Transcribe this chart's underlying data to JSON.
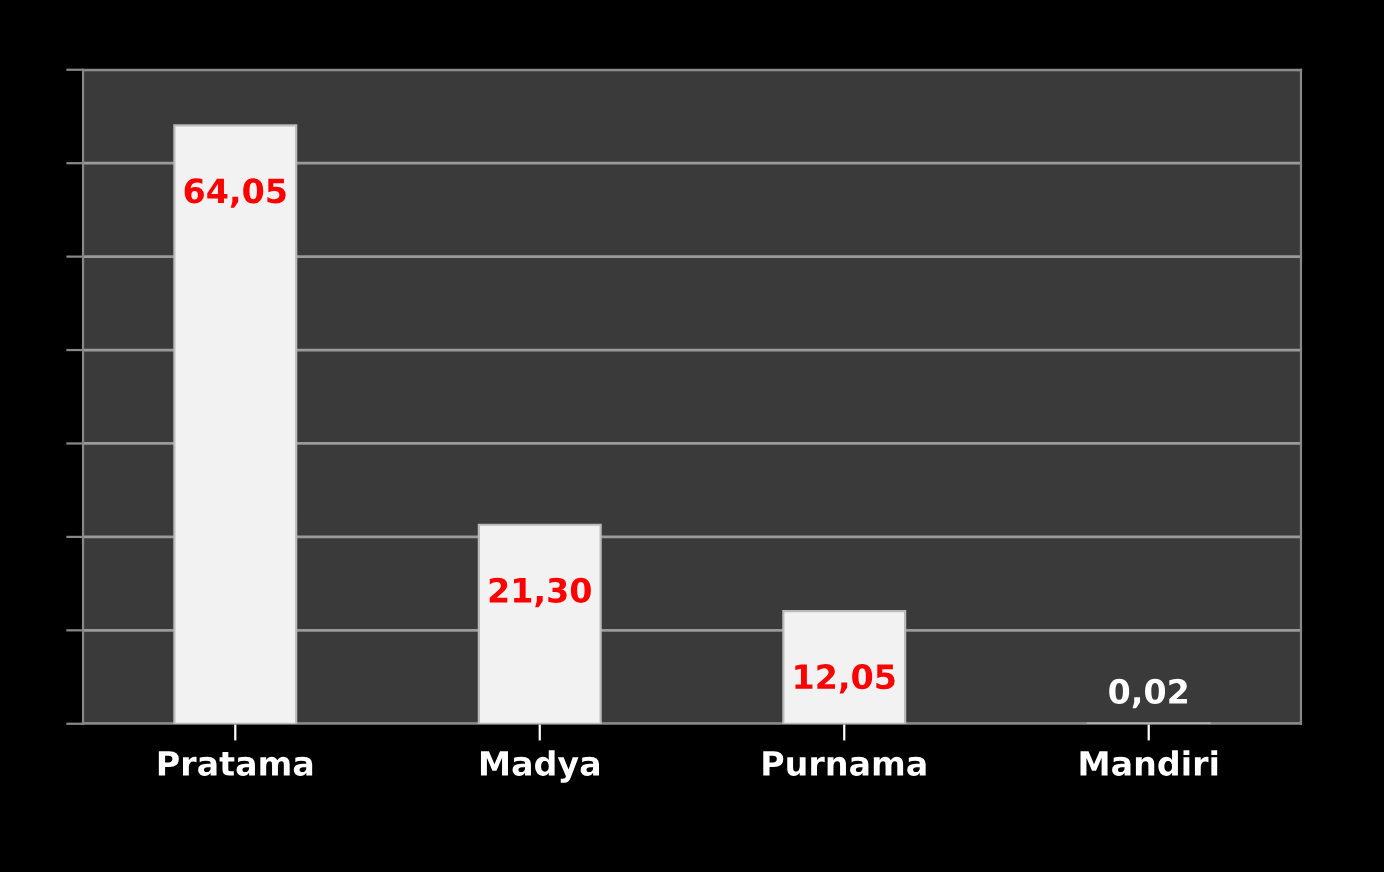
{
  "chart_data": {
    "type": "bar",
    "categories": [
      "Pratama",
      "Madya",
      "Purnama",
      "Mandiri"
    ],
    "values": [
      64.05,
      21.3,
      12.05,
      0.02
    ],
    "value_labels": [
      "64,05",
      "21,30",
      "12,05",
      "0,02"
    ],
    "color": "#f2f2f2",
    "ylim": [
      0,
      70
    ],
    "yticks": [
      {
        "value": 0,
        "label": null
      },
      {
        "value": 10,
        "label": null
      },
      {
        "value": 20,
        "label": null
      },
      {
        "value": 30,
        "label": null
      },
      {
        "value": 40,
        "label": null
      },
      {
        "value": 50,
        "label": null
      },
      {
        "value": 60,
        "label": null
      },
      {
        "value": 70,
        "label": null
      }
    ],
    "grid": "y",
    "tick_labels": "x"
  }
}
